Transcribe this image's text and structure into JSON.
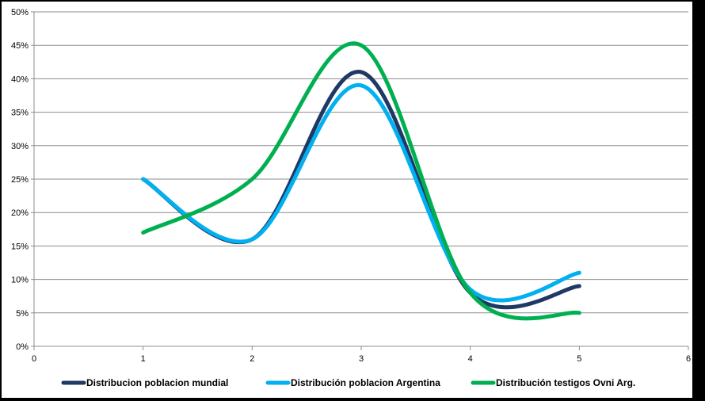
{
  "chart_data": {
    "type": "line",
    "smooth": true,
    "title": "",
    "xlabel": "",
    "ylabel": "",
    "xlim": [
      0,
      6
    ],
    "ylim": [
      0,
      0.5
    ],
    "x_ticks": [
      0,
      1,
      2,
      3,
      4,
      5,
      6
    ],
    "x_tick_labels": [
      "0",
      "1",
      "2",
      "3",
      "4",
      "5",
      "6"
    ],
    "y_ticks": [
      0,
      0.05,
      0.1,
      0.15,
      0.2,
      0.25,
      0.3,
      0.35,
      0.4,
      0.45,
      0.5
    ],
    "y_tick_labels": [
      "0%",
      "5%",
      "10%",
      "15%",
      "20%",
      "25%",
      "30%",
      "35%",
      "40%",
      "45%",
      "50%"
    ],
    "grid": {
      "horizontal": true,
      "vertical": false
    },
    "legend_position": "bottom",
    "x": [
      1,
      2,
      3,
      4,
      5
    ],
    "series": [
      {
        "name": "Distribucion poblacion mundial",
        "color": "#1f3864",
        "values": [
          0.25,
          0.16,
          0.41,
          0.08,
          0.09
        ]
      },
      {
        "name": "Distribución poblacion Argentina",
        "color": "#00b0f0",
        "values": [
          0.25,
          0.16,
          0.39,
          0.085,
          0.11
        ]
      },
      {
        "name": "Distribución testigos Ovni Arg.",
        "color": "#00b050",
        "values": [
          0.17,
          0.25,
          0.45,
          0.08,
          0.05
        ]
      }
    ]
  }
}
